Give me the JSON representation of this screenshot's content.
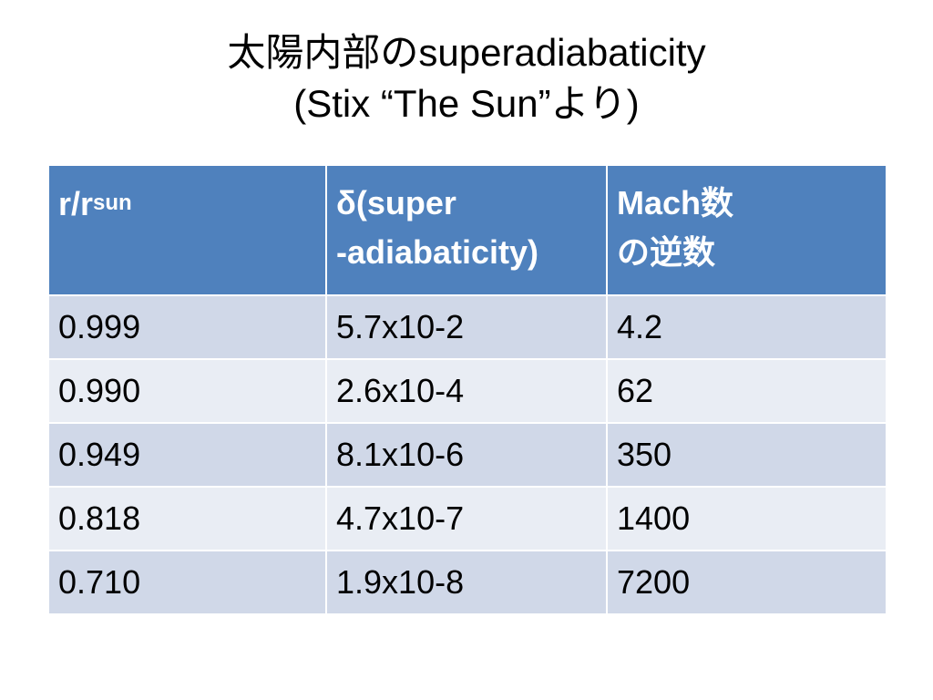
{
  "title": {
    "lines": [
      "太陽内部のsuperadiabaticity",
      "(Stix “The Sun”より)"
    ]
  },
  "table": {
    "header": [
      {
        "text": "r/r",
        "subscript": "sun"
      },
      {
        "lines": [
          "δ(super",
          "-adiabaticity)"
        ]
      },
      {
        "lines": [
          "Mach数",
          "の逆数"
        ]
      }
    ],
    "rows": [
      [
        "0.999",
        "5.7x10-2",
        "4.2"
      ],
      [
        "0.990",
        "2.6x10-4",
        "62"
      ],
      [
        "0.949",
        "8.1x10-6",
        "350"
      ],
      [
        "0.818",
        "4.7x10-7",
        "1400"
      ],
      [
        "0.710",
        "1.9x10-8",
        "7200"
      ]
    ]
  }
}
